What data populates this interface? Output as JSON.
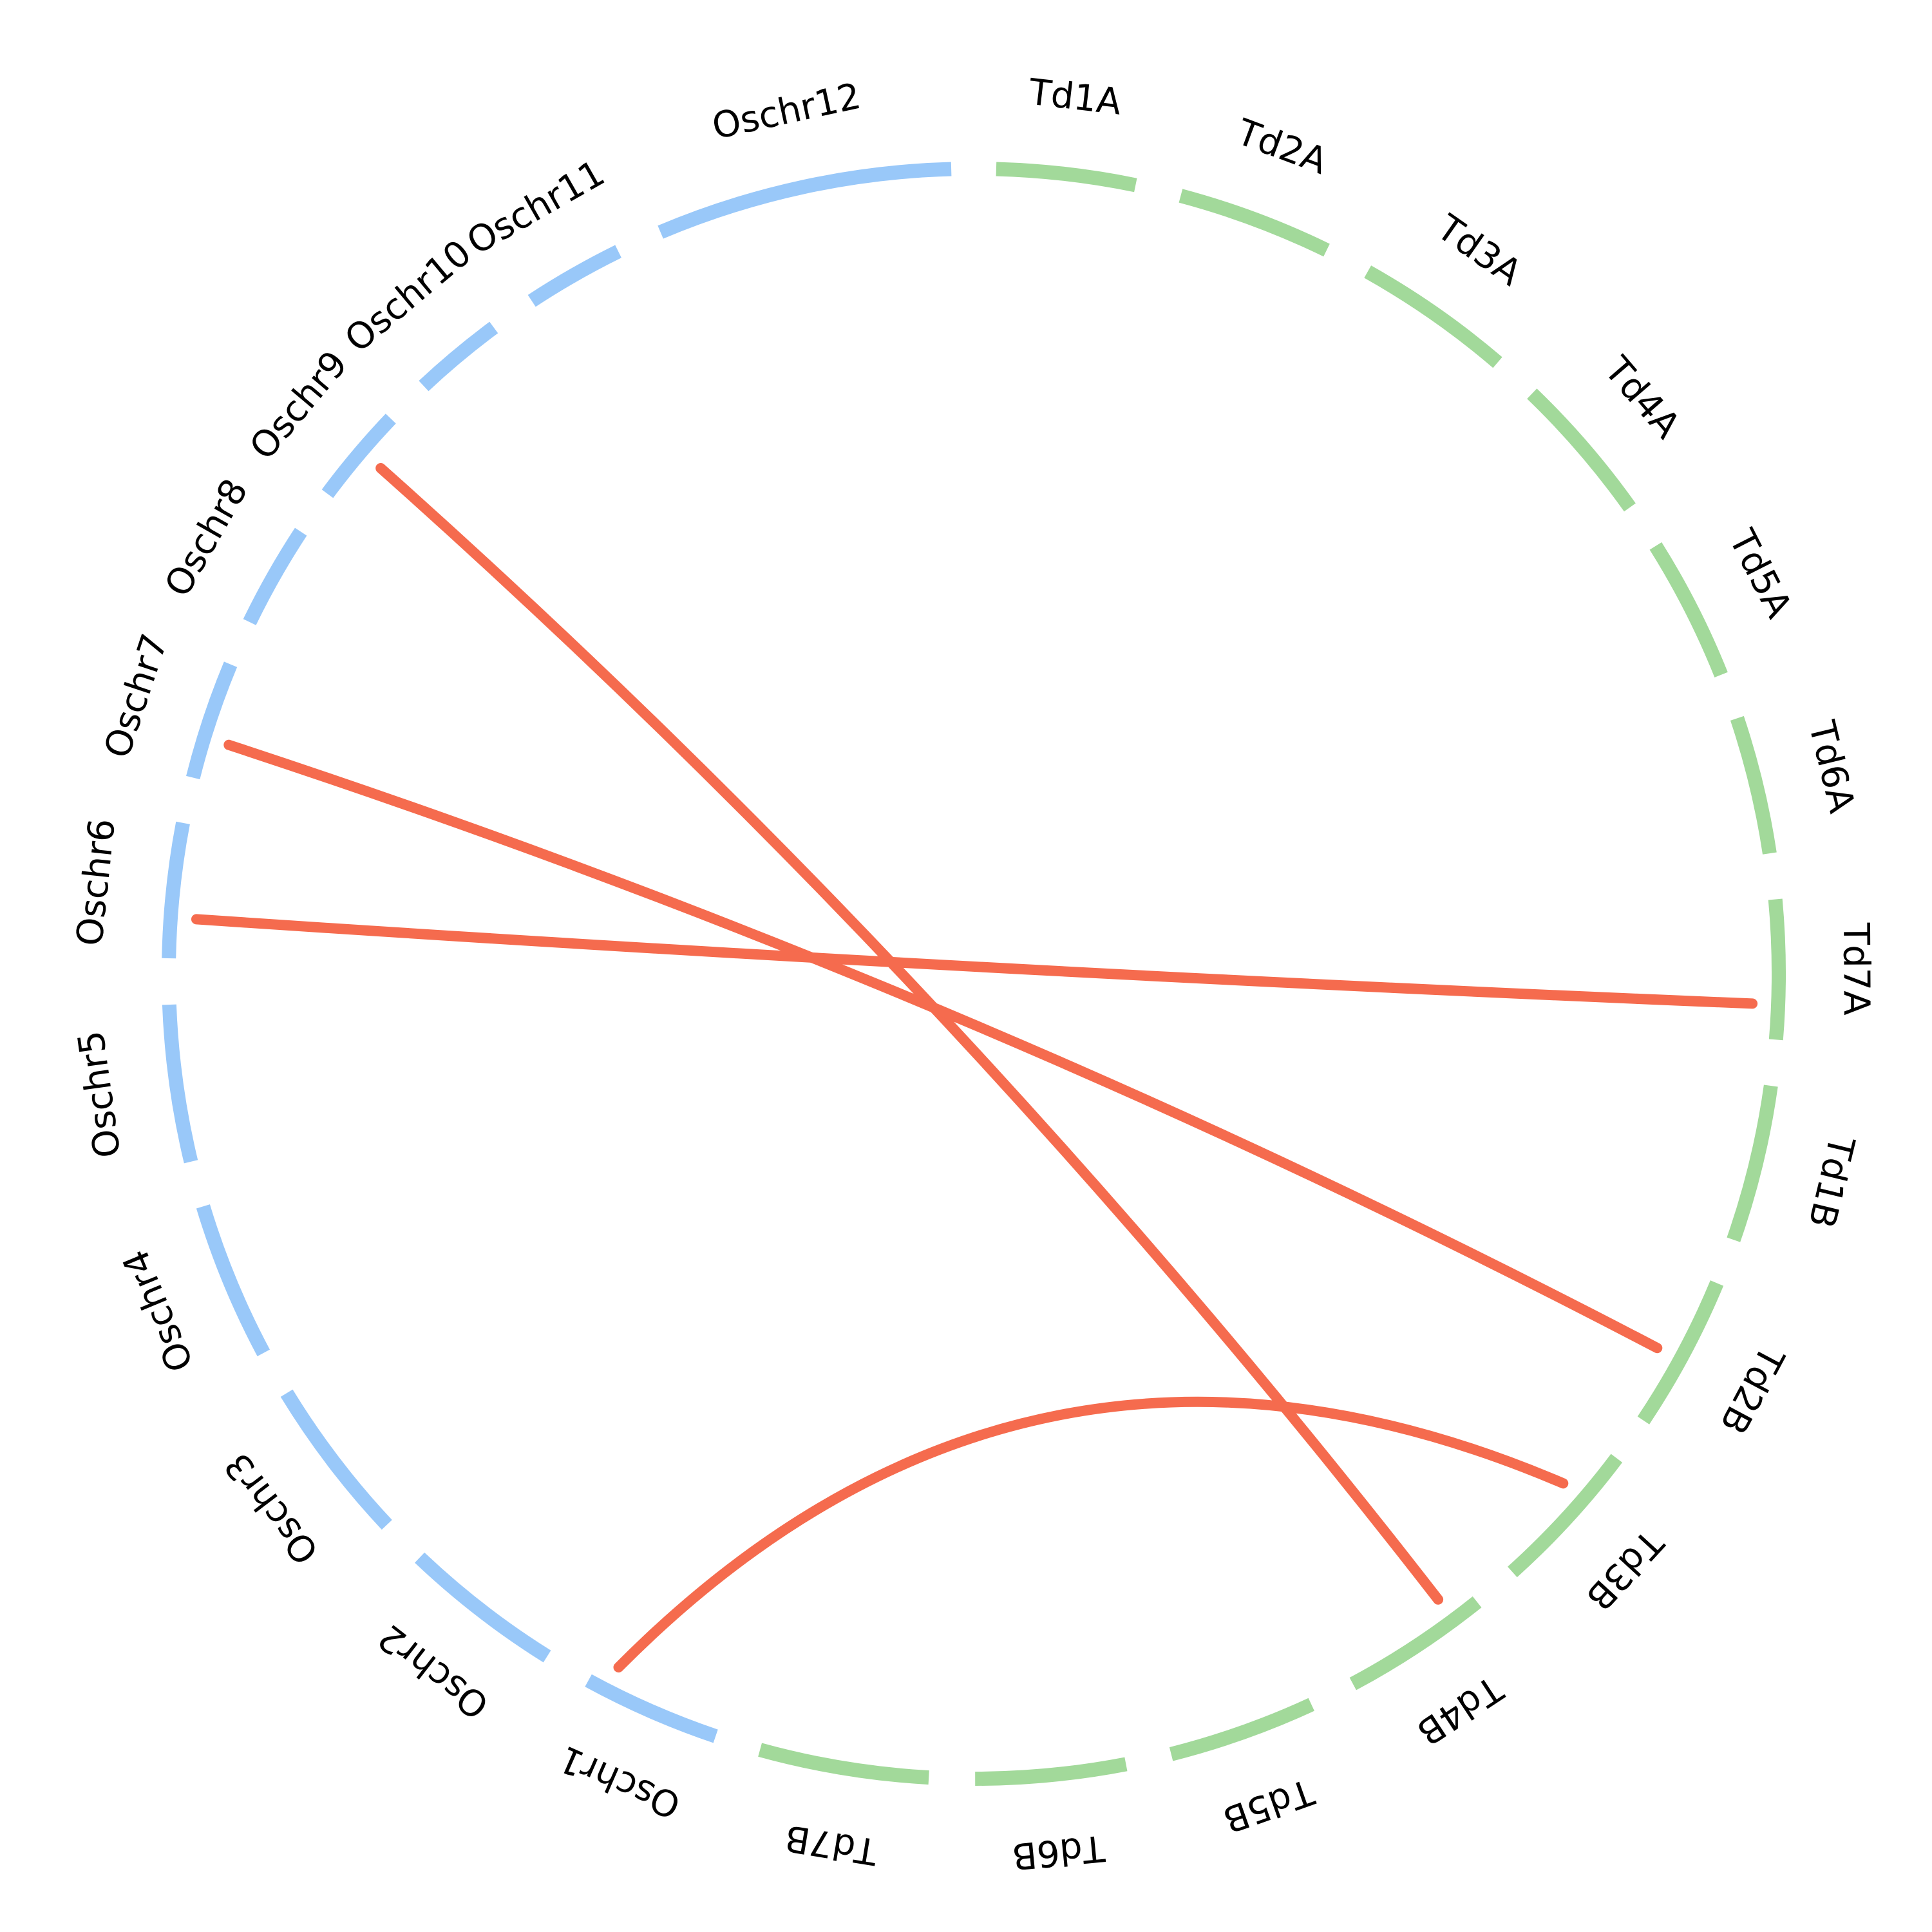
{
  "diagram": {
    "type": "circos-synteny",
    "colors": {
      "rice_chromosomes": "#99c8f9",
      "wheat_chromosomes": "#a2d99a",
      "links": "#f56b4e",
      "labels": "#000000"
    },
    "chromosomes": [
      {
        "id": "Oschr1",
        "label": "Oschr1",
        "group": "rice"
      },
      {
        "id": "Oschr2",
        "label": "Oschr2",
        "group": "rice"
      },
      {
        "id": "Oschr3",
        "label": "Oschr3",
        "group": "rice"
      },
      {
        "id": "Oschr4",
        "label": "Oschr4",
        "group": "rice"
      },
      {
        "id": "Oschr5",
        "label": "Oschr5",
        "group": "rice"
      },
      {
        "id": "Oschr6",
        "label": "Oschr6",
        "group": "rice"
      },
      {
        "id": "Oschr7",
        "label": "Oschr7",
        "group": "rice"
      },
      {
        "id": "Oschr8",
        "label": "Oschr8",
        "group": "rice"
      },
      {
        "id": "Oschr9",
        "label": "Oschr9",
        "group": "rice"
      },
      {
        "id": "Oschr10",
        "label": "Oschr10",
        "group": "rice"
      },
      {
        "id": "Oschr11",
        "label": "Oschr11",
        "group": "rice"
      },
      {
        "id": "Oschr12",
        "label": "Oschr12",
        "group": "rice"
      },
      {
        "id": "Td1A",
        "label": "Td1A",
        "group": "wheat"
      },
      {
        "id": "Td2A",
        "label": "Td2A",
        "group": "wheat"
      },
      {
        "id": "Td3A",
        "label": "Td3A",
        "group": "wheat"
      },
      {
        "id": "Td4A",
        "label": "Td4A",
        "group": "wheat"
      },
      {
        "id": "Td5A",
        "label": "Td5A",
        "group": "wheat"
      },
      {
        "id": "Td6A",
        "label": "Td6A",
        "group": "wheat"
      },
      {
        "id": "Td7A",
        "label": "Td7A",
        "group": "wheat"
      },
      {
        "id": "Td1B",
        "label": "Td1B",
        "group": "wheat"
      },
      {
        "id": "Td2B",
        "label": "Td2B",
        "group": "wheat"
      },
      {
        "id": "Td3B",
        "label": "Td3B",
        "group": "wheat"
      },
      {
        "id": "Td4B",
        "label": "Td4B",
        "group": "wheat"
      },
      {
        "id": "Td5B",
        "label": "Td5B",
        "group": "wheat"
      },
      {
        "id": "Td6B",
        "label": "Td6B",
        "group": "wheat"
      },
      {
        "id": "Td7B",
        "label": "Td7B",
        "group": "wheat"
      }
    ],
    "links": [
      {
        "from": "Oschr9",
        "to": "Td4B"
      },
      {
        "from": "Oschr7",
        "to": "Td2B"
      },
      {
        "from": "Oschr6",
        "to": "Td7A"
      },
      {
        "from": "Oschr1",
        "to": "Td3B"
      }
    ]
  }
}
